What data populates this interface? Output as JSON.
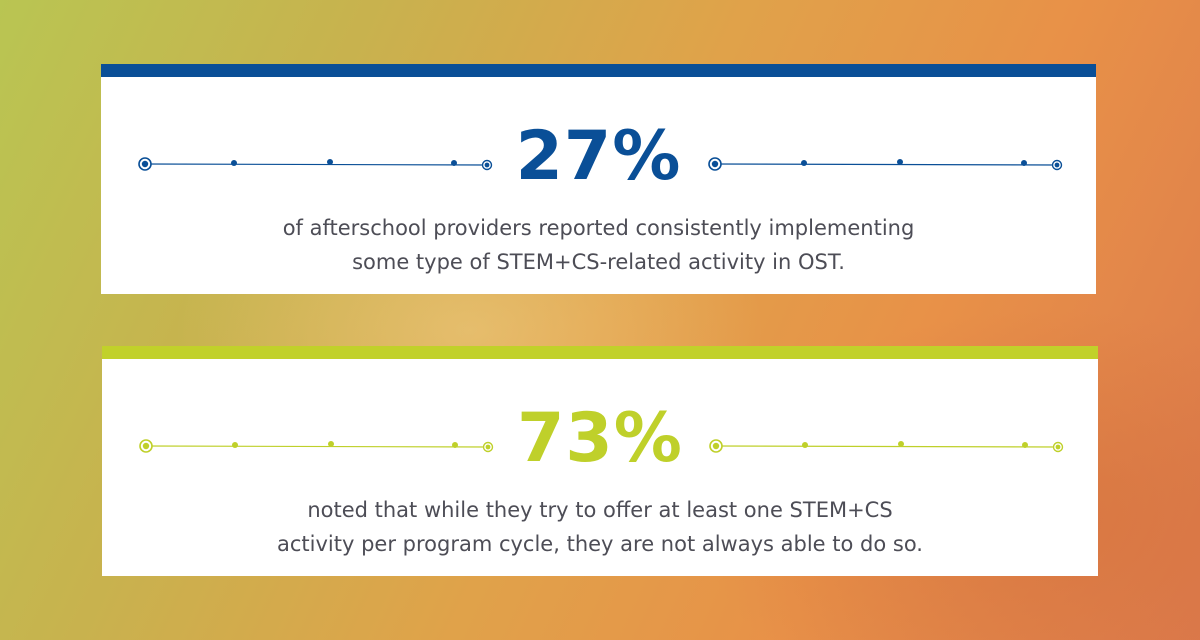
{
  "stats": [
    {
      "value": "27%",
      "description_line1": "of afterschool providers reported consistently implementing",
      "description_line2": "some type of STEM+CS-related activity in OST.",
      "accent_color": "#0a4f97"
    },
    {
      "value": "73%",
      "description_line1": "noted that while they try to offer at least one STEM+CS",
      "description_line2": "activity per program cycle, they are not always able to do so.",
      "accent_color": "#c1d12a"
    }
  ],
  "icons": [
    "circuit-line-icon"
  ]
}
